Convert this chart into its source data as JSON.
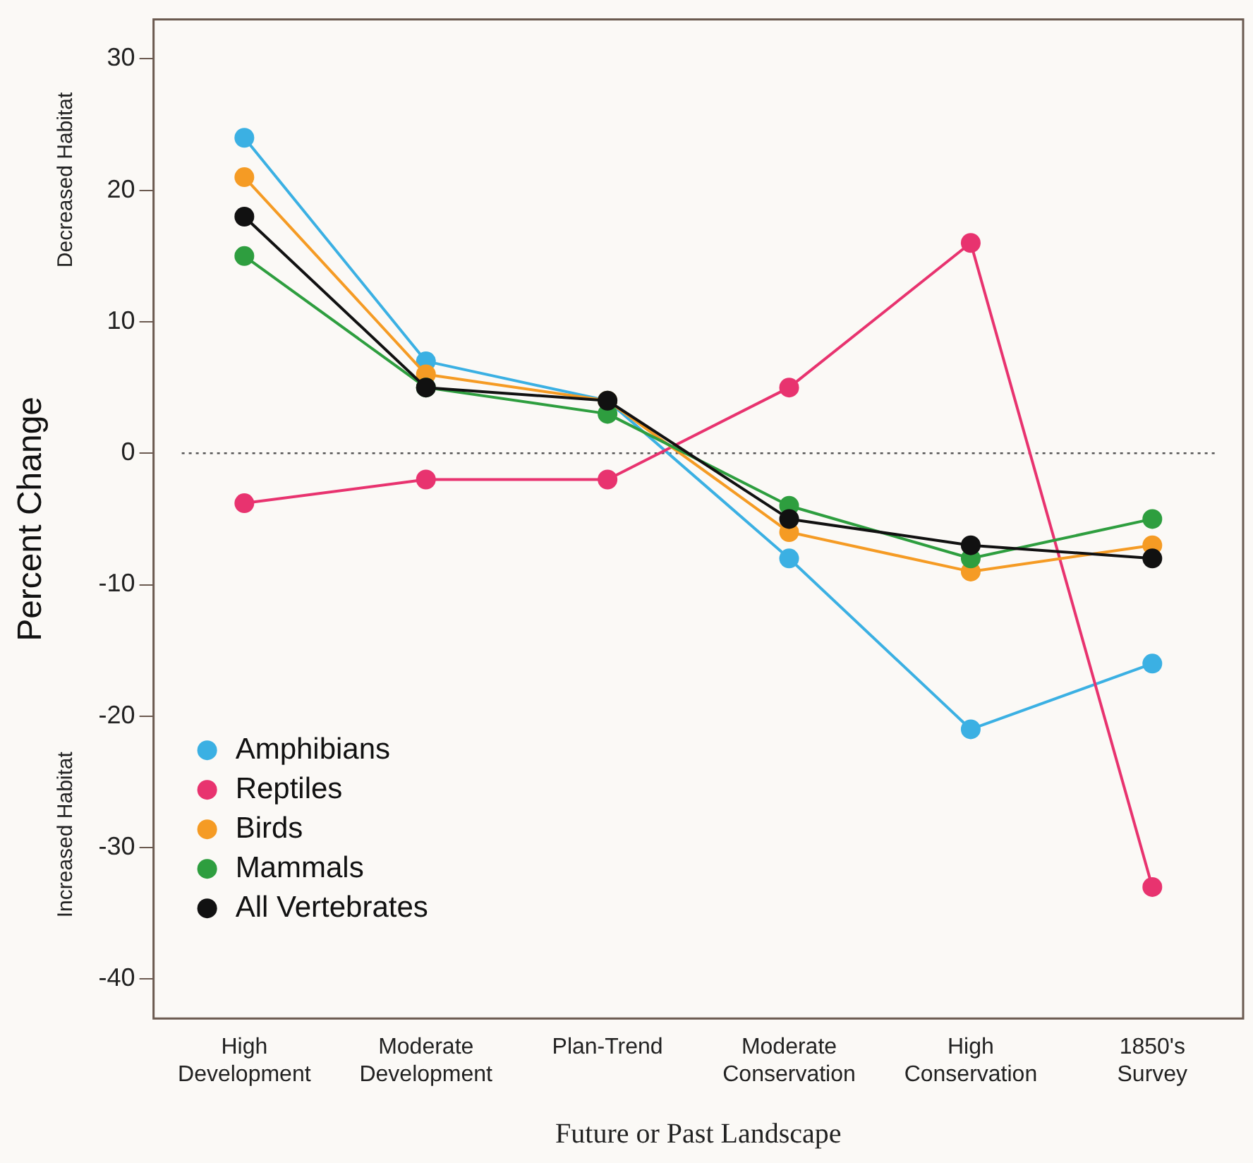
{
  "chart_data": {
    "type": "line",
    "xlabel": "Future or Past Landscape",
    "ylabel": "Percent Change",
    "annotations": [
      "Decreased Habitat",
      "Increased Habitat"
    ],
    "categories": [
      "High Development",
      "Moderate Development",
      "Plan-Trend",
      "Moderate Conservation",
      "High Conservation",
      "1850's Survey"
    ],
    "series": [
      {
        "name": "Amphibians",
        "color": "#3bb0e3",
        "values": [
          24,
          7,
          4,
          -8,
          -21,
          -16
        ]
      },
      {
        "name": "Reptiles",
        "color": "#e8336f",
        "values": [
          -3.8,
          -2,
          -2,
          5,
          16,
          -33
        ]
      },
      {
        "name": "Birds",
        "color": "#f59b24",
        "values": [
          21,
          6,
          4,
          -6,
          -9,
          -7
        ]
      },
      {
        "name": "Mammals",
        "color": "#2e9e3f",
        "values": [
          15,
          5,
          3,
          -4,
          -8,
          -5
        ]
      },
      {
        "name": "All Vertebrates",
        "color": "#111111",
        "values": [
          18,
          5,
          4,
          -5,
          -7,
          -8
        ]
      }
    ],
    "ylim": [
      -43,
      33
    ],
    "yticks": [
      -40,
      -30,
      -20,
      -10,
      0,
      10,
      20,
      30
    ],
    "ref_lines": [
      {
        "axis": "y",
        "value": 0,
        "line_style": "dotted",
        "color": "#555555"
      }
    ],
    "grid": false,
    "legend": "bottom left",
    "marker": "circle",
    "line_style": "solid"
  }
}
